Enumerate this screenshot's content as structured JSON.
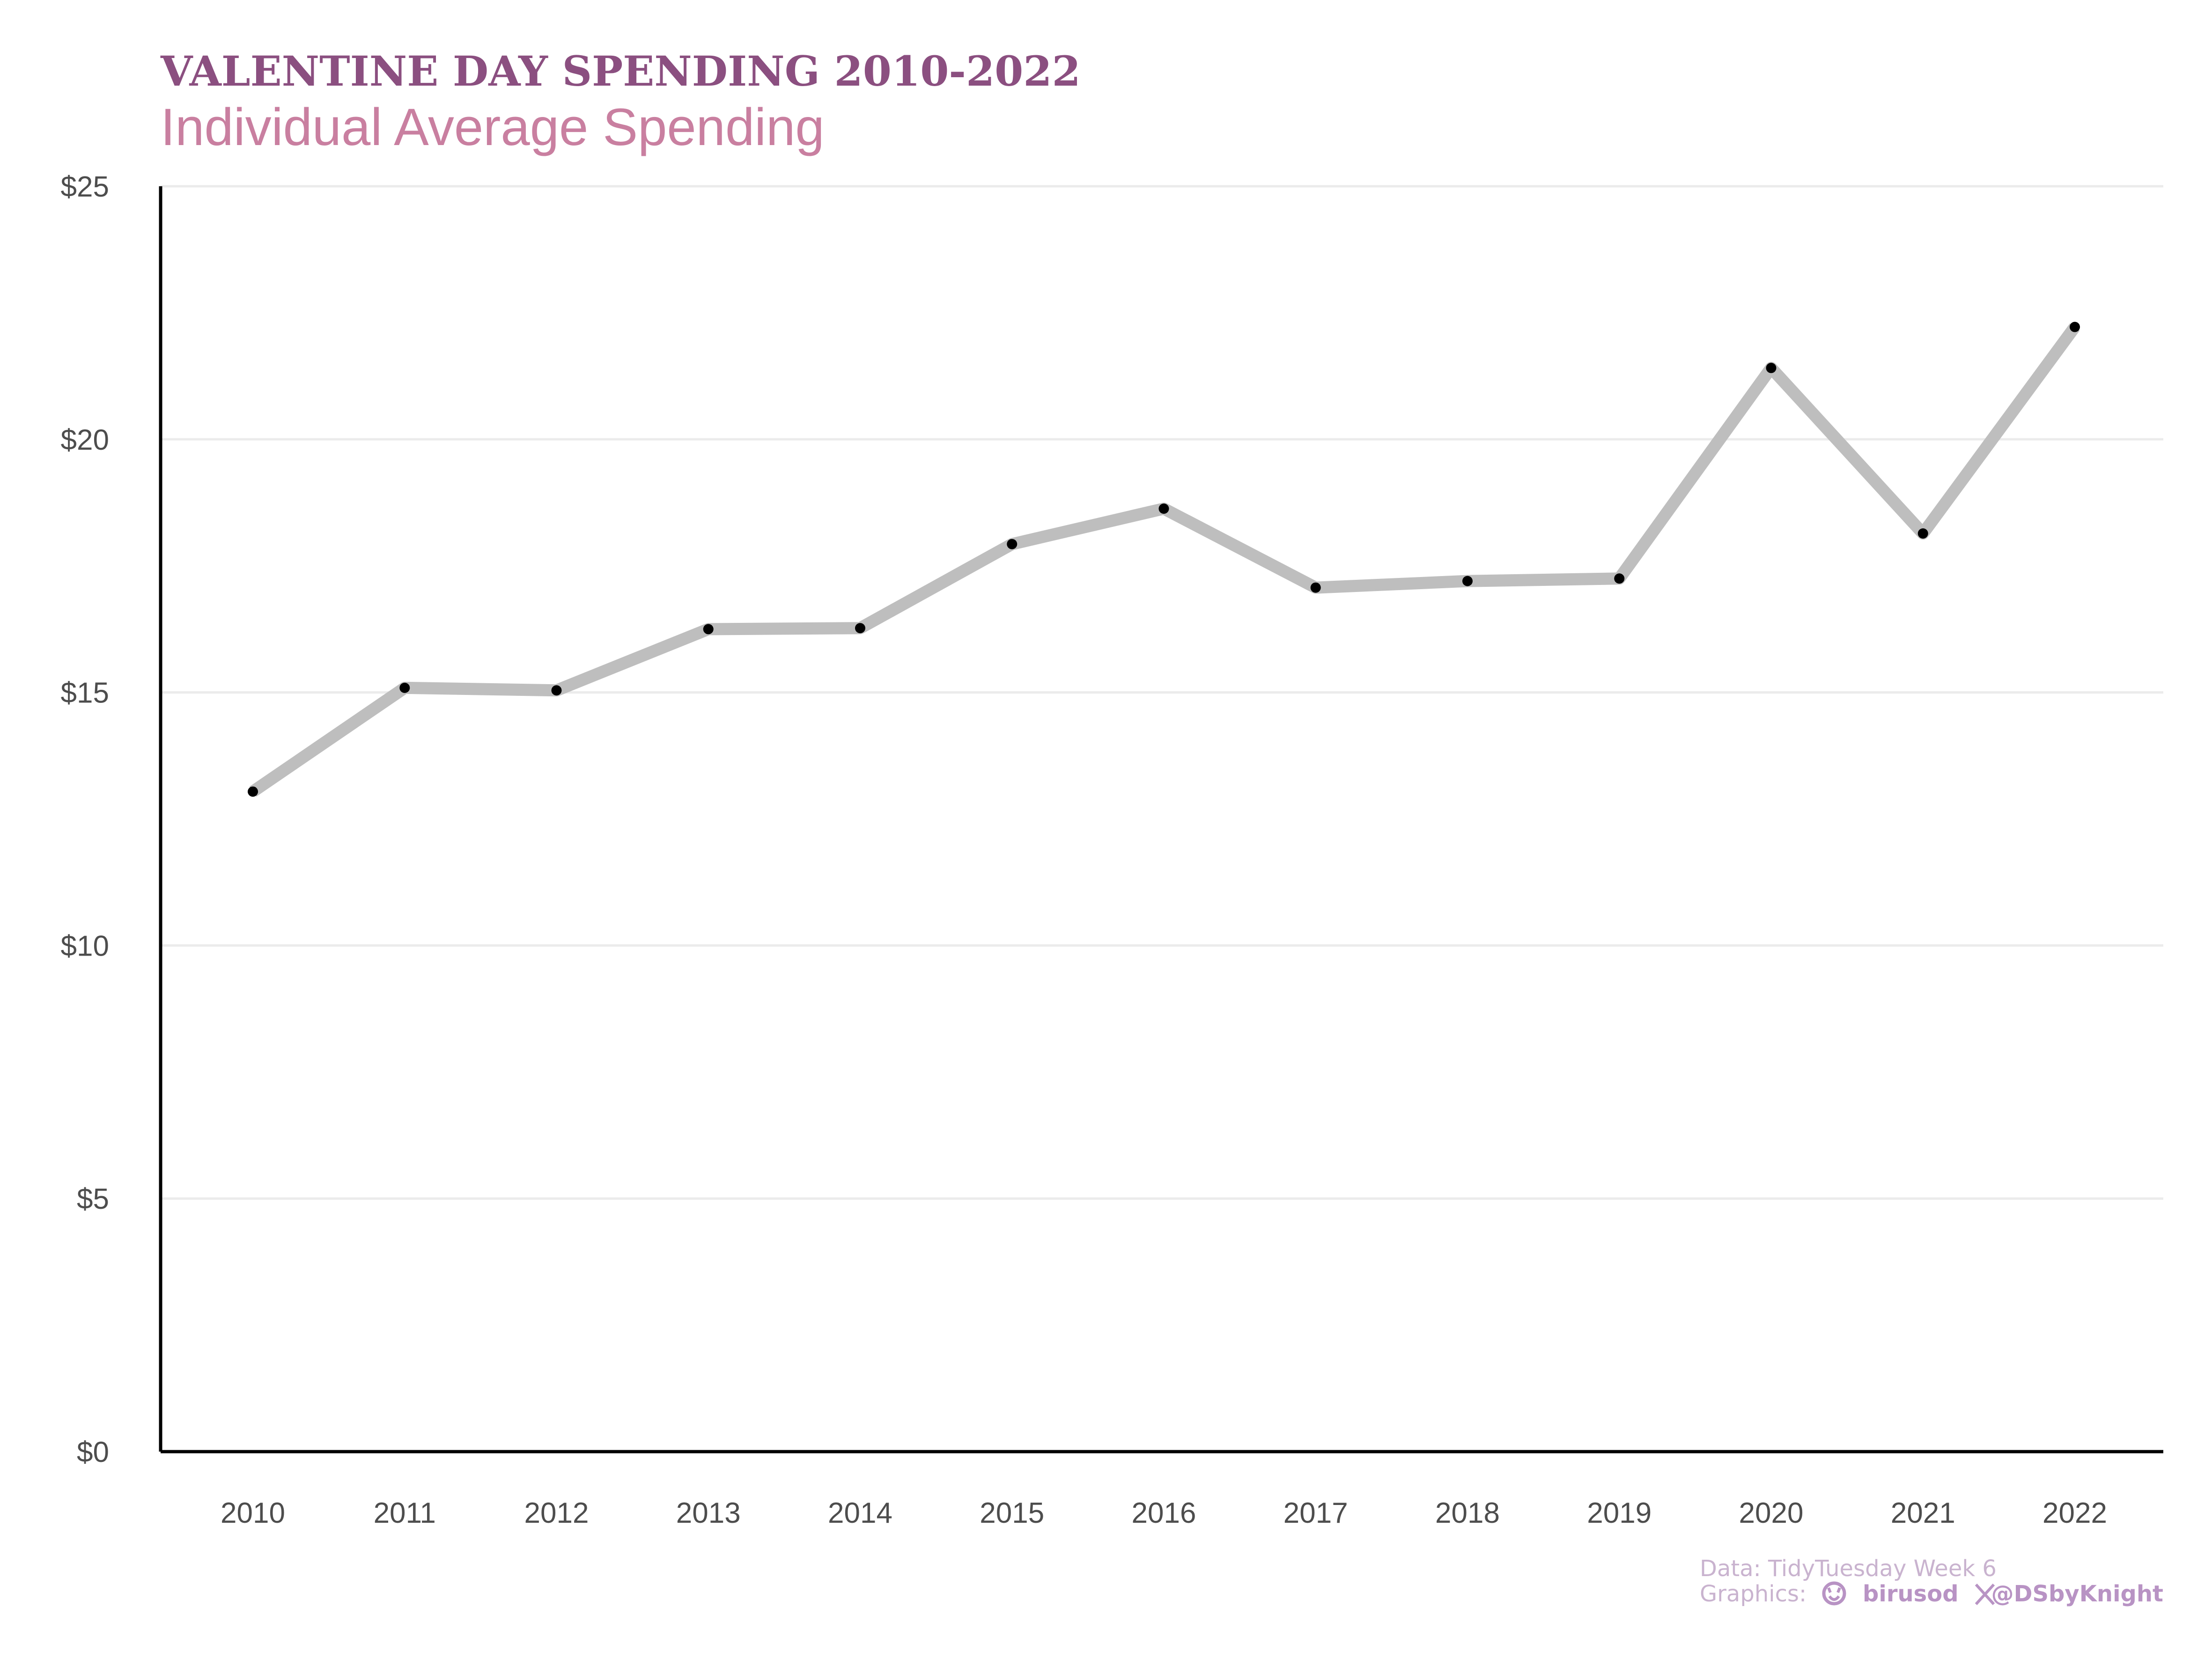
{
  "chart_data": {
    "type": "line",
    "title": "VALENTINE DAY SPENDING 2010-2022",
    "subtitle": "Individual Average Spending",
    "x": [
      2010,
      2011,
      2012,
      2013,
      2014,
      2015,
      2016,
      2017,
      2018,
      2019,
      2020,
      2021,
      2022
    ],
    "series": [
      {
        "values": [
          13.04,
          15.09,
          15.04,
          16.25,
          16.27,
          17.93,
          18.63,
          17.07,
          17.2,
          17.25,
          21.41,
          18.14,
          22.22
        ]
      }
    ],
    "x_tick_labels": [
      "2010",
      "2011",
      "2012",
      "2013",
      "2014",
      "2015",
      "2016",
      "2017",
      "2018",
      "2019",
      "2020",
      "2021",
      "2022"
    ],
    "y_tick_labels": [
      "$0",
      "$5",
      "$10",
      "$15",
      "$20",
      "$25"
    ],
    "y_ticks": [
      0,
      5,
      10,
      15,
      20,
      25
    ],
    "ylim": [
      0,
      25
    ],
    "xlabel": "",
    "ylabel": "",
    "grid": "horizontal",
    "legend": "none"
  },
  "caption": {
    "line1": "Data: TidyTuesday Week 6",
    "line2_prefix": "Graphics:",
    "github_icon": "github-icon",
    "github_handle": "birusod",
    "x_icon": "x-icon",
    "x_handle": "@DSbyKnight"
  },
  "colors": {
    "title": "#8B4F80",
    "subtitle": "#C97FA0",
    "line": "#BEBEBE",
    "point": "#000000",
    "axis": "#000000",
    "grid": "#EBEBEB",
    "tick_text": "#4D4D4D",
    "caption": "#C9B3CF",
    "caption_bold": "#B893C4"
  }
}
